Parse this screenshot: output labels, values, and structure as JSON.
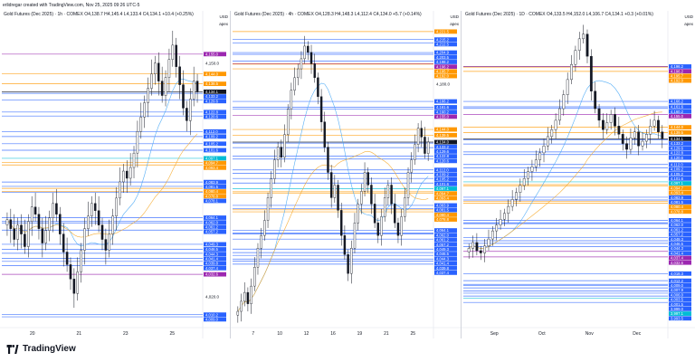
{
  "header": {
    "caption": "erlidregar created with TradingView.com, Nov 25, 2025 09:26 UTC-5"
  },
  "footer": {
    "brand": "TradingView"
  },
  "colors": {
    "candle_body": "#131722",
    "blue_level": "#2962ff",
    "purple_level": "#9c27b0",
    "orange_level": "#ff9800",
    "cyan_level": "#00bcd4",
    "ma_orange": "#f5a623",
    "ma_blue": "#42a5f5"
  },
  "chart_data": [
    {
      "type": "candlestick",
      "title": "Gold Futures (Dec 2025) · 1h · COMEX  O4,138.7 H4,145.4 L4,133.4 C4,134.1 +10.4 (+0.25%)",
      "currency": "USD",
      "scale": "apex",
      "ylim": [
        4005,
        4170
      ],
      "x_tick_labels": [
        "20",
        "21",
        "23",
        "25"
      ],
      "price_ticks": [
        "4,150.0",
        "4,020.0"
      ],
      "levels": [
        {
          "label": "4,155.0",
          "color": "purple"
        },
        {
          "label": "4,144.0",
          "color": "orange"
        },
        {
          "label": "4,138.5",
          "color": "orange"
        },
        {
          "label": "4,134.1",
          "color": "dark"
        },
        {
          "label": "4,133.2",
          "color": "blue"
        },
        {
          "label": "4,129.6",
          "color": "blue"
        },
        {
          "label": "4,122.8",
          "color": "blue"
        },
        {
          "label": "4,120.6",
          "color": "blue"
        },
        {
          "label": "4,112.0",
          "color": "blue"
        },
        {
          "label": "4,109.2",
          "color": "blue"
        },
        {
          "label": "4,105.2",
          "color": "blue"
        },
        {
          "label": "4,101.6",
          "color": "blue"
        },
        {
          "label": "4,097.1",
          "color": "cyan"
        },
        {
          "label": "4,094.7",
          "color": "orange"
        },
        {
          "label": "4,093.4",
          "color": "orange"
        },
        {
          "label": "4,083.9",
          "color": "blue"
        },
        {
          "label": "4,081.5",
          "color": "blue"
        },
        {
          "label": "4,080.4",
          "color": "orange"
        },
        {
          "label": "4,078.8",
          "color": "orange"
        },
        {
          "label": "4,078.1",
          "color": "blue"
        },
        {
          "label": "4,064.1",
          "color": "blue"
        },
        {
          "label": "4,062.0",
          "color": "blue"
        },
        {
          "label": "4,061.2",
          "color": "blue"
        },
        {
          "label": "4,057.2",
          "color": "blue"
        },
        {
          "label": "4,049.3",
          "color": "blue"
        },
        {
          "label": "4,046.5",
          "color": "blue"
        },
        {
          "label": "4,044.3",
          "color": "blue"
        },
        {
          "label": "4,041.4",
          "color": "blue"
        },
        {
          "label": "4,039.8",
          "color": "blue"
        },
        {
          "label": "4,037.4",
          "color": "blue"
        },
        {
          "label": "4,032.6",
          "color": "purple"
        },
        {
          "label": "4,010.2",
          "color": "blue"
        },
        {
          "label": "4,009.0",
          "color": "blue"
        }
      ],
      "closes": [
        4063,
        4058,
        4052,
        4060,
        4055,
        4048,
        4062,
        4070,
        4066,
        4058,
        4050,
        4057,
        4064,
        4072,
        4066,
        4055,
        4045,
        4038,
        4030,
        4022,
        4034,
        4046,
        4058,
        4065,
        4072,
        4068,
        4060,
        4052,
        4046,
        4055,
        4065,
        4075,
        4084,
        4090,
        4086,
        4092,
        4100,
        4112,
        4120,
        4128,
        4136,
        4144,
        4150,
        4140,
        4132,
        4142,
        4152,
        4160,
        4148,
        4138,
        4125,
        4118,
        4130,
        4140,
        4134
      ]
    },
    {
      "type": "candlestick",
      "title": "Gold Futures (Dec 2025) · 4h · COMEX  O4,128.3 H4,148.3 L4,112.4 C4,134.0 +5.7 (+0.14%)",
      "currency": "USD",
      "scale": "apex",
      "ylim": [
        3990,
        4225
      ],
      "x_tick_labels": [
        "7",
        "10",
        "12",
        "16",
        "19",
        "21",
        "25"
      ],
      "price_ticks": [
        "4,180.0"
      ],
      "levels": [
        {
          "label": "4,221.5",
          "color": "orange"
        },
        {
          "label": "4,215.2",
          "color": "blue"
        },
        {
          "label": "4,212.5",
          "color": "blue"
        },
        {
          "label": "4,204.9",
          "color": "blue"
        },
        {
          "label": "4,203.5",
          "color": "blue"
        },
        {
          "label": "4,198.2",
          "color": "blue"
        },
        {
          "label": "4,196.2",
          "color": "purple"
        },
        {
          "label": "4,195.7",
          "color": "orange"
        },
        {
          "label": "4,192.0",
          "color": "orange"
        },
        {
          "label": "4,166.2",
          "color": "blue"
        },
        {
          "label": "4,161.6",
          "color": "blue"
        },
        {
          "label": "4,160.2",
          "color": "blue"
        },
        {
          "label": "4,155.0",
          "color": "purple"
        },
        {
          "label": "4,144.0",
          "color": "orange"
        },
        {
          "label": "4,139.5",
          "color": "orange"
        },
        {
          "label": "4,134.0",
          "color": "dark"
        },
        {
          "label": "4,133.2",
          "color": "blue"
        },
        {
          "label": "4,129.6",
          "color": "blue"
        },
        {
          "label": "4,122.8",
          "color": "blue"
        },
        {
          "label": "4,120.6",
          "color": "blue"
        },
        {
          "label": "4,112.0",
          "color": "blue"
        },
        {
          "label": "4,109.2",
          "color": "blue"
        },
        {
          "label": "4,105.2",
          "color": "blue"
        },
        {
          "label": "4,101.6",
          "color": "blue"
        },
        {
          "label": "4,097.1",
          "color": "cyan"
        },
        {
          "label": "4,094.7",
          "color": "orange"
        },
        {
          "label": "4,093.4",
          "color": "orange"
        },
        {
          "label": "4,083.9",
          "color": "blue"
        },
        {
          "label": "4,081.5",
          "color": "blue"
        },
        {
          "label": "4,080.4",
          "color": "orange"
        },
        {
          "label": "4,078.8",
          "color": "orange"
        },
        {
          "label": "4,064.1",
          "color": "blue"
        },
        {
          "label": "4,062.0",
          "color": "blue"
        },
        {
          "label": "4,061.2",
          "color": "blue"
        },
        {
          "label": "4,057.2",
          "color": "blue"
        },
        {
          "label": "4,049.3",
          "color": "blue"
        },
        {
          "label": "4,046.5",
          "color": "blue"
        },
        {
          "label": "4,044.3",
          "color": "blue"
        },
        {
          "label": "4,041.4",
          "color": "blue"
        },
        {
          "label": "4,039.8",
          "color": "blue"
        },
        {
          "label": "4,037.4",
          "color": "blue"
        }
      ],
      "closes": [
        4000,
        4008,
        4015,
        4006,
        4020,
        4035,
        4050,
        4060,
        4072,
        4090,
        4105,
        4120,
        4130,
        4122,
        4140,
        4160,
        4175,
        4185,
        4192,
        4200,
        4210,
        4205,
        4196,
        4185,
        4170,
        4150,
        4130,
        4110,
        4090,
        4100,
        4080,
        4060,
        4045,
        4030,
        4050,
        4070,
        4085,
        4095,
        4110,
        4100,
        4085,
        4070,
        4060,
        4075,
        4090,
        4100,
        4085,
        4070,
        4060,
        4075,
        4090,
        4110,
        4120,
        4132,
        4145,
        4138,
        4125,
        4134
      ]
    },
    {
      "type": "candlestick",
      "title": "Gold Futures (Dec 2025) · 1D · COMEX  O4,133.5 H4,152.0 L4,106.7 C4,134.1 +0.3 (+0.01%)",
      "currency": "USD",
      "scale": "apex",
      "ylim": [
        3975,
        4230
      ],
      "x_tick_labels": [
        "Sep",
        "Oct",
        "Nov",
        "Dec"
      ],
      "levels": [
        {
          "label": "4,196.2",
          "color": "blue"
        },
        {
          "label": "4,196.2",
          "color": "purple"
        },
        {
          "label": "4,195.7",
          "color": "orange"
        },
        {
          "label": "4,192.0",
          "color": "orange"
        },
        {
          "label": "4,166.2",
          "color": "blue"
        },
        {
          "label": "4,161.6",
          "color": "blue"
        },
        {
          "label": "4,160.2",
          "color": "blue"
        },
        {
          "label": "4,155.0",
          "color": "purple"
        },
        {
          "label": "4,144.0",
          "color": "orange"
        },
        {
          "label": "4,139.5",
          "color": "orange"
        },
        {
          "label": "4,134.1",
          "color": "dark"
        },
        {
          "label": "4,133.2",
          "color": "blue"
        },
        {
          "label": "4,129.6",
          "color": "blue"
        },
        {
          "label": "4,122.8",
          "color": "blue"
        },
        {
          "label": "4,120.6",
          "color": "blue"
        },
        {
          "label": "4,112.0",
          "color": "blue"
        },
        {
          "label": "4,109.2",
          "color": "blue"
        },
        {
          "label": "4,105.2",
          "color": "blue"
        },
        {
          "label": "4,101.6",
          "color": "blue"
        },
        {
          "label": "4,097.1",
          "color": "cyan"
        },
        {
          "label": "4,094.7",
          "color": "orange"
        },
        {
          "label": "4,093.4",
          "color": "orange"
        },
        {
          "label": "4,083.9",
          "color": "blue"
        },
        {
          "label": "4,081.5",
          "color": "blue"
        },
        {
          "label": "4,080.4",
          "color": "orange"
        },
        {
          "label": "4,078.8",
          "color": "orange"
        },
        {
          "label": "4,064.1",
          "color": "blue"
        },
        {
          "label": "4,062.0",
          "color": "blue"
        },
        {
          "label": "4,061.2",
          "color": "blue"
        },
        {
          "label": "4,057.2",
          "color": "blue"
        },
        {
          "label": "4,049.3",
          "color": "blue"
        },
        {
          "label": "4,046.5",
          "color": "blue"
        },
        {
          "label": "4,044.3",
          "color": "blue"
        },
        {
          "label": "4,041.4",
          "color": "blue"
        },
        {
          "label": "4,037.4",
          "color": "purple"
        },
        {
          "label": "4,032.6",
          "color": "purple"
        },
        {
          "label": "4,018.3",
          "color": "blue"
        },
        {
          "label": "4,012.2",
          "color": "blue"
        },
        {
          "label": "4,009.0",
          "color": "blue"
        },
        {
          "label": "4,007.9",
          "color": "blue"
        },
        {
          "label": "4,006.0",
          "color": "blue"
        },
        {
          "label": "4,003.5",
          "color": "blue"
        },
        {
          "label": "4,001.5",
          "color": "blue"
        },
        {
          "label": "3,999.0",
          "color": "blue"
        },
        {
          "label": "3,997.1",
          "color": "cyan"
        },
        {
          "label": "3,993.5",
          "color": "blue"
        }
      ],
      "closes": [
        4040,
        4045,
        4038,
        4036,
        4042,
        4048,
        4055,
        4060,
        4065,
        4070,
        4076,
        4082,
        4088,
        4094,
        4100,
        4106,
        4110,
        4116,
        4122,
        4128,
        4136,
        4142,
        4150,
        4160,
        4172,
        4185,
        4198,
        4210,
        4220,
        4224,
        4205,
        4175,
        4160,
        4150,
        4142,
        4148,
        4155,
        4145,
        4138,
        4130,
        4125,
        4135,
        4140,
        4128,
        4132,
        4138,
        4145,
        4150,
        4140,
        4134
      ]
    }
  ]
}
